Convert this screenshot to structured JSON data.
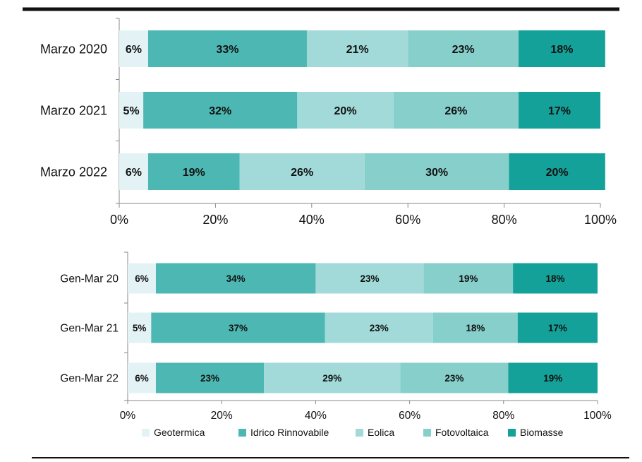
{
  "colors": {
    "Geotermica": "#e3f3f5",
    "Idrico Rinnovabile": "#4db8b3",
    "Eolica": "#a1dad8",
    "Fotovoltaica": "#86cfcb",
    "Biomasse": "#14a199"
  },
  "chart_data": [
    {
      "type": "bar",
      "orientation": "horizontal",
      "stacked": "percent",
      "categories": [
        "Marzo 2020",
        "Marzo 2021",
        "Marzo 2022"
      ],
      "xlim": [
        0,
        100
      ],
      "xticks": [
        "0%",
        "20%",
        "40%",
        "60%",
        "80%",
        "100%"
      ],
      "series": [
        {
          "name": "Geotermica",
          "values": [
            6,
            5,
            6
          ]
        },
        {
          "name": "Idrico Rinnovabile",
          "values": [
            33,
            32,
            19
          ]
        },
        {
          "name": "Eolica",
          "values": [
            21,
            20,
            26
          ]
        },
        {
          "name": "Fotovoltaica",
          "values": [
            23,
            26,
            30
          ]
        },
        {
          "name": "Biomasse",
          "values": [
            18,
            17,
            20
          ]
        }
      ],
      "labels": [
        [
          "6%",
          "33%",
          "21%",
          "23%",
          "18%"
        ],
        [
          "5%",
          "32%",
          "20%",
          "26%",
          "17%"
        ],
        [
          "6%",
          "19%",
          "26%",
          "30%",
          "20%"
        ]
      ]
    },
    {
      "type": "bar",
      "orientation": "horizontal",
      "stacked": "percent",
      "categories": [
        "Gen-Mar 20",
        "Gen-Mar 21",
        "Gen-Mar 22"
      ],
      "xlim": [
        0,
        100
      ],
      "xticks": [
        "0%",
        "20%",
        "40%",
        "60%",
        "80%",
        "100%"
      ],
      "series": [
        {
          "name": "Geotermica",
          "values": [
            6,
            5,
            6
          ]
        },
        {
          "name": "Idrico Rinnovabile",
          "values": [
            34,
            37,
            23
          ]
        },
        {
          "name": "Eolica",
          "values": [
            23,
            23,
            29
          ]
        },
        {
          "name": "Fotovoltaica",
          "values": [
            19,
            18,
            23
          ]
        },
        {
          "name": "Biomasse",
          "values": [
            18,
            17,
            19
          ]
        }
      ],
      "labels": [
        [
          "6%",
          "34%",
          "23%",
          "19%",
          "18%"
        ],
        [
          "5%",
          "37%",
          "23%",
          "18%",
          "17%"
        ],
        [
          "6%",
          "23%",
          "29%",
          "23%",
          "19%"
        ]
      ],
      "legend": [
        "Geotermica",
        "Idrico Rinnovabile",
        "Eolica",
        "Fotovoltaica",
        "Biomasse"
      ],
      "legend_position": "bottom"
    }
  ]
}
